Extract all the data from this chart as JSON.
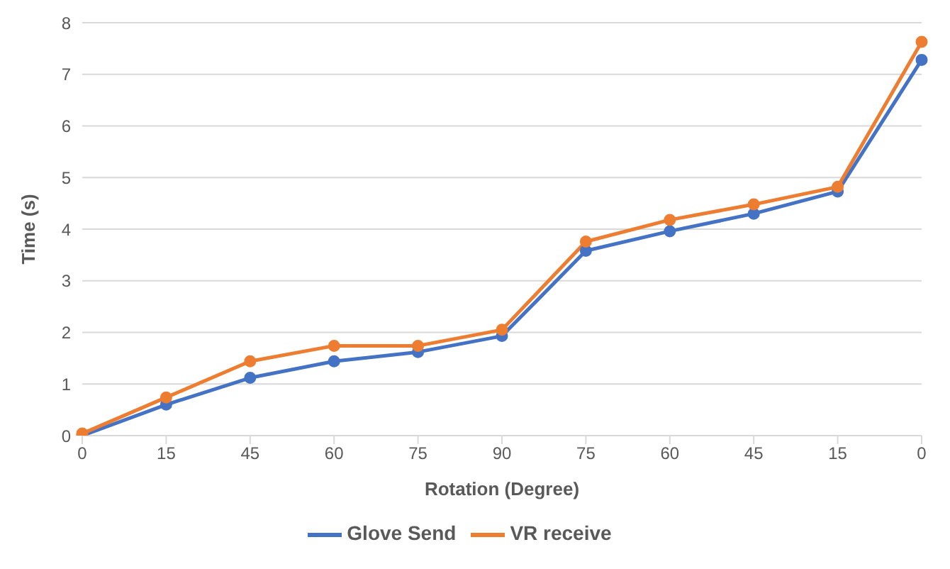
{
  "chart_data": {
    "type": "line",
    "xlabel": "Rotation (Degree)",
    "ylabel": "Time (s)",
    "categories": [
      "0",
      "15",
      "45",
      "60",
      "75",
      "90",
      "75",
      "60",
      "45",
      "15",
      "0"
    ],
    "series": [
      {
        "name": "Glove Send",
        "color": "#4472c4",
        "values": [
          0,
          0.6,
          1.12,
          1.44,
          1.62,
          1.93,
          3.58,
          3.96,
          4.3,
          4.73,
          7.28
        ]
      },
      {
        "name": "VR receive",
        "color": "#ed7d31",
        "values": [
          0.04,
          0.74,
          1.44,
          1.74,
          1.74,
          2.05,
          3.76,
          4.18,
          4.48,
          4.82,
          7.63
        ]
      }
    ],
    "ylim": [
      0,
      8
    ],
    "yticks": [
      0,
      1,
      2,
      3,
      4,
      5,
      6,
      7,
      8
    ],
    "grid": "y",
    "legend": "bottom",
    "marker": "circle",
    "line_style": "solid"
  }
}
